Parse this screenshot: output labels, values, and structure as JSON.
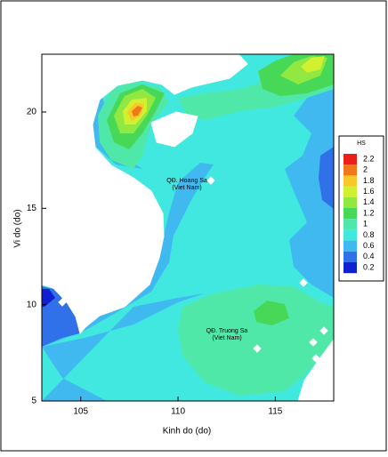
{
  "chart_data": {
    "type": "contour",
    "xlabel": "Kinh do (do)",
    "ylabel": "Vi do (do)",
    "xlim": [
      103,
      118
    ],
    "ylim": [
      5,
      23
    ],
    "xticks": [
      105,
      110,
      115
    ],
    "yticks": [
      5,
      10,
      15,
      20
    ],
    "colorbar": {
      "title": "HS",
      "levels": [
        2.2,
        2,
        1.8,
        1.6,
        1.4,
        1.2,
        1,
        0.8,
        0.6,
        0.4,
        0.2
      ],
      "colors": [
        "#e82018",
        "#f07818",
        "#f8c828",
        "#d0f030",
        "#90e840",
        "#48d858",
        "#50e8a8",
        "#40e8e0",
        "#40b8f0",
        "#3070e8",
        "#1020d0"
      ]
    },
    "annotations": [
      {
        "lines": [
          "QĐ. Hoang Sa",
          "(Viet Nam)"
        ]
      },
      {
        "lines": [
          "QĐ. Truong Sa",
          "(Viet Nam)"
        ]
      }
    ]
  }
}
